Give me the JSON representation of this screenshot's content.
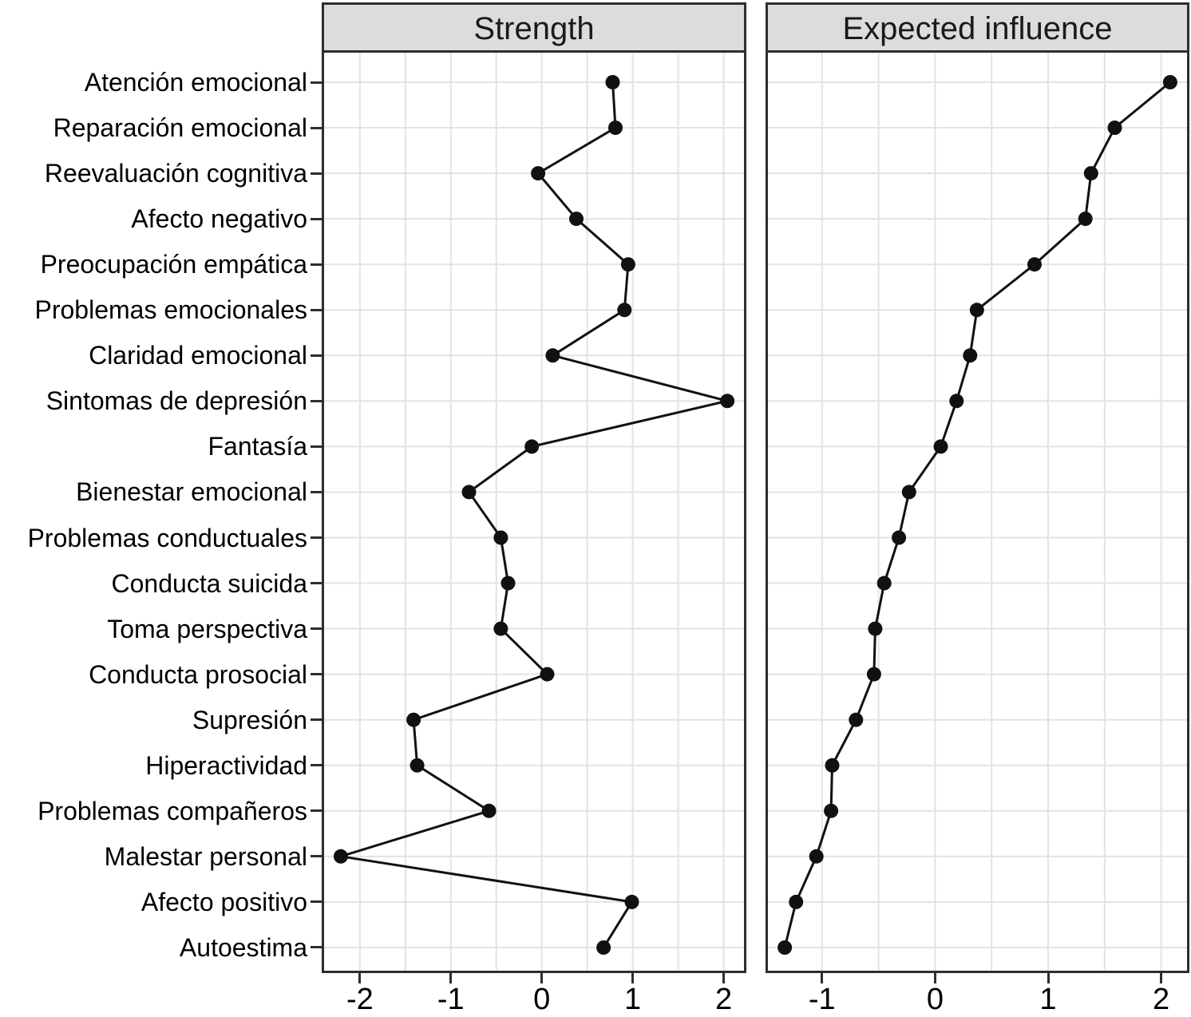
{
  "chart_data": {
    "type": "line",
    "variant": "centrality-dot-plot",
    "orientation": "horizontal, categories on y-axis, shared between panels",
    "grid": "major and minor vertical gridlines every 0.5 units; one horizontal gridline per category",
    "legend": "none",
    "categories": [
      "Atención emocional",
      "Reparación emocional",
      "Reevaluación cognitiva",
      "Afecto negativo",
      "Preocupación empática",
      "Problemas emocionales",
      "Claridad emocional",
      "Sintomas de depresión",
      "Fantasía",
      "Bienestar emocional",
      "Problemas conductuales",
      "Conducta suicida",
      "Toma perspectiva",
      "Conducta prosocial",
      "Supresión",
      "Hiperactividad",
      "Problemas compañeros",
      "Malestar personal",
      "Afecto positivo",
      "Autoestima"
    ],
    "panels": [
      {
        "title": "Strength",
        "xlim": [
          -2.42,
          2.25
        ],
        "xtick_labels": [
          "-2",
          "-1",
          "0",
          "1",
          "2"
        ],
        "xtick_values": [
          -2,
          -1,
          0,
          1,
          2
        ],
        "values": [
          0.78,
          0.81,
          -0.04,
          0.38,
          0.95,
          0.91,
          0.12,
          2.04,
          -0.11,
          -0.8,
          -0.45,
          -0.37,
          -0.45,
          0.06,
          -1.41,
          -1.37,
          -0.58,
          -2.21,
          0.99,
          0.68
        ]
      },
      {
        "title": "Expected influence",
        "xlim": [
          -1.5,
          2.25
        ],
        "xtick_labels": [
          "-1",
          "0",
          "1",
          "2"
        ],
        "xtick_values": [
          -1,
          0,
          1,
          2
        ],
        "values": [
          2.08,
          1.59,
          1.38,
          1.33,
          0.88,
          0.37,
          0.31,
          0.19,
          0.05,
          -0.23,
          -0.32,
          -0.45,
          -0.53,
          -0.54,
          -0.7,
          -0.91,
          -0.92,
          -1.05,
          -1.23,
          -1.33
        ]
      }
    ],
    "grid_minor_step": 0.5,
    "colors": {
      "series_line": "#111111",
      "marker": "#111111",
      "gridline": "#e3e3e3",
      "panel_border": "#2e2e2e",
      "strip_background": "#dcdcdc",
      "text": "#000000",
      "background": "#ffffff"
    }
  }
}
